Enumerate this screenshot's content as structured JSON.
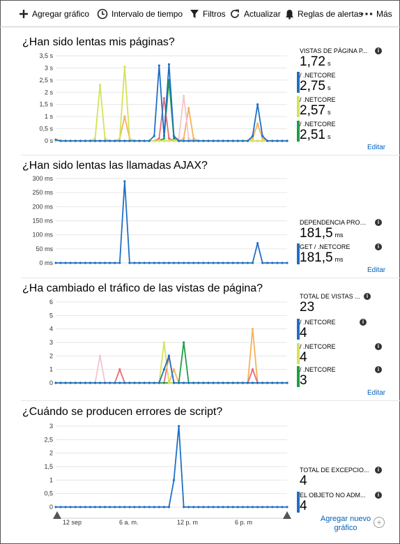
{
  "toolbar": {
    "add_chart": "Agregar gráfico",
    "time_range": "Intervalo de tiempo",
    "filters": "Filtros",
    "refresh": "Actualizar",
    "alert_rules": "Reglas de alertas",
    "more": "Más"
  },
  "colors": {
    "blue": "#1f6fc5",
    "yellowgreen": "#d4e35a",
    "green": "#1e9e45",
    "pink": "#e86a79",
    "lightpink": "#f5c4cc",
    "orange": "#f6b15b",
    "link": "#0060b8"
  },
  "sections": [
    {
      "title": "¿Han sido lentas mis páginas?",
      "metrics": [
        {
          "label": "VISTAS DE PÁGINA P...",
          "value": "1,72",
          "unit": "s",
          "color": ""
        },
        {
          "label": "/ .NETCORE",
          "value": "2,75",
          "unit": "s",
          "color": "#1f6fc5"
        },
        {
          "label": "/ .NETCORE",
          "value": "2,57",
          "unit": "s",
          "color": "#d4e35a"
        },
        {
          "label": "/ .NETCORE",
          "value": "2,51",
          "unit": "s",
          "color": "#1e9e45"
        }
      ],
      "edit": "Editar"
    },
    {
      "title": "¿Han sido lentas las llamadas AJAX?",
      "metrics": [
        {
          "label": "DEPENDENCIA PROM...",
          "value": "181,5",
          "unit": "ms",
          "color": ""
        },
        {
          "label": "GET / .NETCORE",
          "value": "181,5",
          "unit": "ms",
          "color": "#1f6fc5"
        }
      ],
      "edit": "Editar"
    },
    {
      "title": "¿Ha cambiado el tráfico de las vistas de página?",
      "metrics": [
        {
          "label": "TOTAL DE VISTAS ...",
          "value": "23",
          "unit": "",
          "color": ""
        },
        {
          "label": "/ .NETCORE",
          "value": "4",
          "unit": "",
          "color": "#1f6fc5"
        },
        {
          "label": "/ .NETCORE",
          "value": "4",
          "unit": "",
          "color": "#d4e35a"
        },
        {
          "label": "/ .NETCORE",
          "value": "3",
          "unit": "",
          "color": "#1e9e45"
        }
      ],
      "edit": "Editar"
    },
    {
      "title": "¿Cuándo se producen errores de script?",
      "metrics": [
        {
          "label": "TOTAL DE EXCEPCIO...",
          "value": "4",
          "unit": "",
          "color": ""
        },
        {
          "label": "EL OBJETO NO ADM...",
          "value": "4",
          "unit": "",
          "color": "#1f6fc5"
        }
      ]
    }
  ],
  "x_ticks": [
    "12 sep",
    "6 a. m.",
    "12 p. m",
    "6 p. m"
  ],
  "add_chart_label": "Agregar nuevo gráfico",
  "info_glyph": "i",
  "add_glyph": "+",
  "chart_data": [
    {
      "type": "line",
      "title": "¿Han sido lentas mis páginas?",
      "yticks": [
        "3,5 s",
        "3 s",
        "2,5 s",
        "2 s",
        "1,5 s",
        "1 s",
        "0,5 s",
        "0 s"
      ],
      "ylim": [
        0,
        3.5
      ],
      "n": 48,
      "series": [
        {
          "name": "/ .NETCORE",
          "color": "#1f6fc5",
          "points": [
            [
              0,
              0.05
            ],
            [
              20,
              0.2
            ],
            [
              21,
              3.1
            ],
            [
              22,
              0.2
            ],
            [
              23,
              3.15
            ],
            [
              24,
              0.2
            ],
            [
              40,
              0.2
            ],
            [
              41,
              1.5
            ],
            [
              42,
              0.2
            ]
          ]
        },
        {
          "name": "/ .NETCORE",
          "color": "#d4e35a",
          "points": [
            [
              8,
              0.1
            ],
            [
              9,
              2.3
            ],
            [
              10,
              0.1
            ],
            [
              13,
              0.1
            ],
            [
              14,
              3.05
            ],
            [
              15,
              0.1
            ]
          ]
        },
        {
          "color": "#f5c4cc",
          "points": [
            [
              25,
              0.1
            ],
            [
              26,
              1.85
            ],
            [
              27,
              0.1
            ]
          ]
        },
        {
          "color": "#e86a79",
          "points": [
            [
              21,
              0.1
            ],
            [
              22,
              1.75
            ],
            [
              23,
              0.1
            ]
          ]
        },
        {
          "color": "#f6b15b",
          "points": [
            [
              13,
              0.1
            ],
            [
              14,
              1.0
            ],
            [
              15,
              0.1
            ],
            [
              26,
              0.1
            ],
            [
              27,
              1.35
            ],
            [
              28,
              0.1
            ],
            [
              40,
              0.1
            ],
            [
              41,
              0.7
            ],
            [
              42,
              0.1
            ]
          ]
        },
        {
          "name": "/ .NETCORE",
          "color": "#1e9e45",
          "points": [
            [
              22,
              0.1
            ],
            [
              23,
              2.5
            ],
            [
              24,
              0.1
            ]
          ]
        }
      ]
    },
    {
      "type": "line",
      "title": "¿Han sido lentas las llamadas AJAX?",
      "yticks": [
        "300 ms",
        "250 ms",
        "200 ms",
        "150 ms",
        "100 ms",
        "50 ms",
        "0 ms"
      ],
      "ylim": [
        0,
        300
      ],
      "n": 48,
      "series": [
        {
          "name": "GET / .NETCORE",
          "color": "#1f6fc5",
          "points": [
            [
              13,
              0
            ],
            [
              14,
              290
            ],
            [
              15,
              0
            ],
            [
              40,
              0
            ],
            [
              41,
              70
            ],
            [
              42,
              0
            ]
          ]
        }
      ]
    },
    {
      "type": "line",
      "title": "¿Ha cambiado el tráfico de las vistas de página?",
      "yticks": [
        "6",
        "5",
        "4",
        "3",
        "2",
        "1",
        "0"
      ],
      "ylim": [
        0,
        6
      ],
      "n": 48,
      "series": [
        {
          "name": "/ .NETCORE",
          "color": "#1f6fc5",
          "points": [
            [
              21,
              0
            ],
            [
              22,
              1
            ],
            [
              23,
              2
            ],
            [
              24,
              0
            ]
          ]
        },
        {
          "name": "/ .NETCORE",
          "color": "#d4e35a",
          "points": [
            [
              21,
              0
            ],
            [
              22,
              3
            ],
            [
              23,
              0
            ]
          ]
        },
        {
          "name": "/ .NETCORE",
          "color": "#1e9e45",
          "points": [
            [
              25,
              0
            ],
            [
              26,
              3
            ],
            [
              27,
              0
            ]
          ]
        },
        {
          "color": "#f5c4cc",
          "points": [
            [
              8,
              0
            ],
            [
              9,
              2
            ],
            [
              10,
              0
            ]
          ]
        },
        {
          "color": "#e86a79",
          "points": [
            [
              12,
              0
            ],
            [
              13,
              1
            ],
            [
              14,
              0
            ],
            [
              22,
              0
            ],
            [
              23,
              2
            ],
            [
              24,
              0
            ],
            [
              39,
              0
            ],
            [
              40,
              1
            ],
            [
              41,
              0
            ]
          ]
        },
        {
          "color": "#f6b15b",
          "points": [
            [
              23,
              0
            ],
            [
              24,
              1
            ],
            [
              25,
              0
            ],
            [
              39,
              0
            ],
            [
              40,
              4
            ],
            [
              41,
              0
            ]
          ]
        }
      ]
    },
    {
      "type": "line",
      "title": "¿Cuándo se producen errores de script?",
      "yticks": [
        "3",
        "2,5",
        "2",
        "1,5",
        "1",
        "0,5",
        "0"
      ],
      "ylim": [
        0,
        3
      ],
      "n": 48,
      "series": [
        {
          "name": "EL OBJETO NO ADM...",
          "color": "#1f6fc5",
          "points": [
            [
              0,
              0
            ],
            [
              23,
              0
            ],
            [
              24,
              1
            ],
            [
              25,
              3
            ],
            [
              26,
              0
            ],
            [
              47,
              0
            ]
          ]
        }
      ]
    }
  ]
}
